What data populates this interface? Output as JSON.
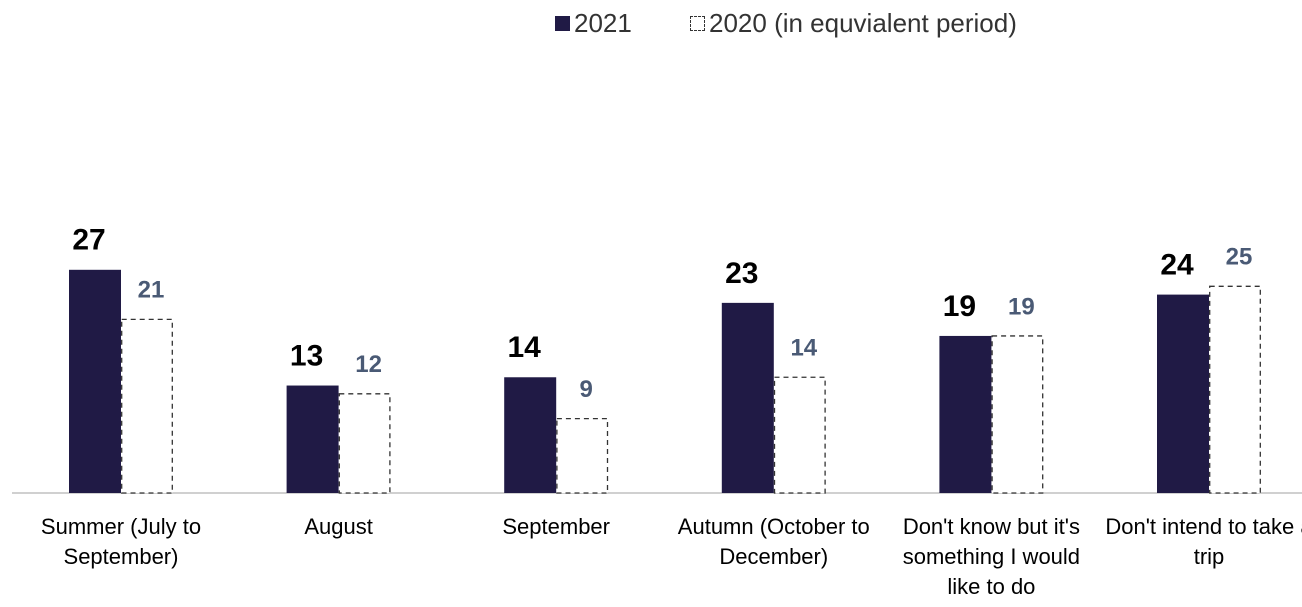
{
  "chart_data": {
    "type": "bar",
    "categories": [
      "Summer (July to September)",
      "August",
      "September",
      "Autumn (October to December)",
      "Don't know but it's something I would like to do",
      "Don't intend to take a trip"
    ],
    "series": [
      {
        "name": "2021",
        "color": "#201a45",
        "values": [
          27,
          13,
          14,
          23,
          19,
          24
        ]
      },
      {
        "name": "2020 (in equvialent period)",
        "color": "#ffffff",
        "values": [
          21,
          12,
          9,
          14,
          19,
          25
        ]
      }
    ],
    "ylim": [
      0,
      30
    ]
  }
}
